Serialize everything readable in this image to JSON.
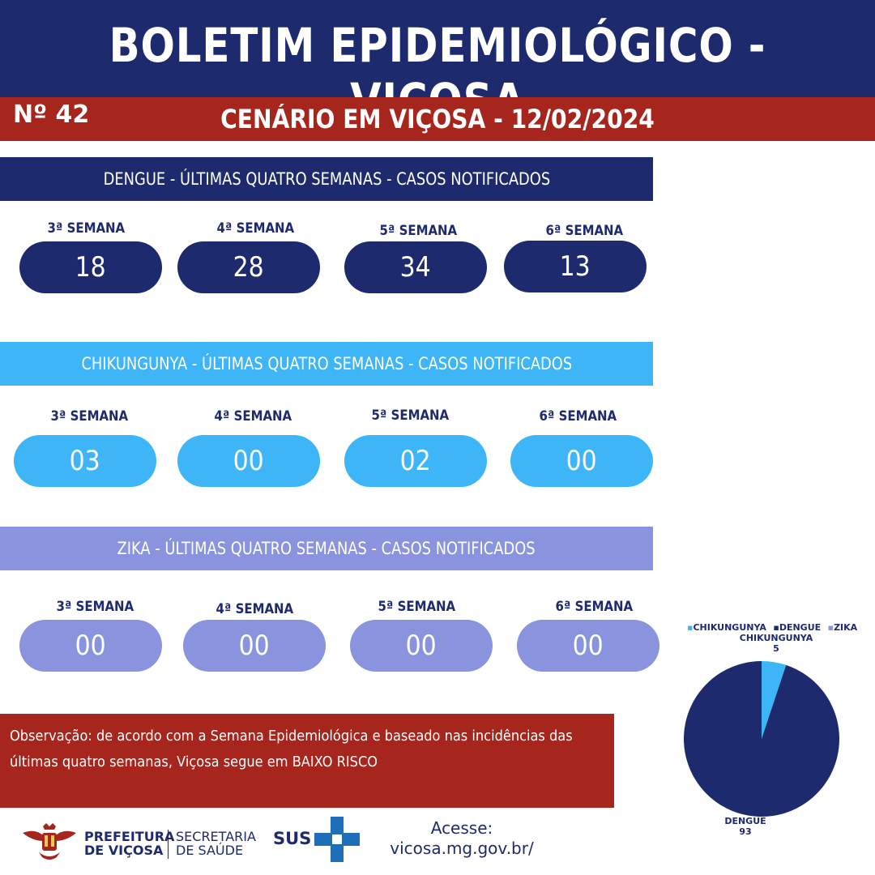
{
  "header": {
    "title": "BOLETIM EPIDEMIOLÓGICO - VIÇOSA",
    "issue": "Nº 42",
    "scenario": "CENÁRIO EM VIÇOSA - 12/02/2024"
  },
  "dengue": {
    "banner": "DENGUE - ÚLTIMAS QUATRO SEMANAS - CASOS NOTIFICADOS",
    "weeks": [
      {
        "label": "3ª SEMANA",
        "value": "18"
      },
      {
        "label": "4ª SEMANA",
        "value": "28"
      },
      {
        "label": "5ª SEMANA",
        "value": "34"
      },
      {
        "label": "6ª SEMANA",
        "value": "13"
      }
    ]
  },
  "chikungunya": {
    "banner": "CHIKUNGUNYA - ÚLTIMAS QUATRO SEMANAS - CASOS NOTIFICADOS",
    "weeks": [
      {
        "label": "3ª SEMANA",
        "value": "03"
      },
      {
        "label": "4ª SEMANA",
        "value": "00"
      },
      {
        "label": "5ª SEMANA",
        "value": "02"
      },
      {
        "label": "6ª SEMANA",
        "value": "00"
      }
    ]
  },
  "zika": {
    "banner": "ZIKA - ÚLTIMAS QUATRO SEMANAS - CASOS NOTIFICADOS",
    "weeks": [
      {
        "label": "3ª SEMANA",
        "value": "00"
      },
      {
        "label": "4ª SEMANA",
        "value": "00"
      },
      {
        "label": "5ª SEMANA",
        "value": "00"
      },
      {
        "label": "6ª SEMANA",
        "value": "00"
      }
    ]
  },
  "observation": "Observação: de acordo com a Semana Epidemiológica e baseado nas incidências das últimas quatro semanas, Viçosa segue em BAIXO RISCO",
  "footer": {
    "prefeitura_line1": "PREFEITURA",
    "prefeitura_line2": "DE VIÇOSA",
    "secretaria_line1": "SECRETARIA",
    "secretaria_line2": "DE SAÚDE",
    "sus": "SUS",
    "acesse": "Acesse:",
    "url": "vicosa.mg.gov.br/"
  },
  "colors": {
    "navy": "#1e2a6e",
    "red": "#a6251c",
    "light_blue": "#3db5f7",
    "lavender": "#8a93de"
  },
  "chart_data": {
    "type": "pie",
    "legend": [
      "CHIKUNGUNYA",
      "DENGUE",
      "ZIKA"
    ],
    "legend_position": "top",
    "slices": [
      {
        "name": "CHIKUNGUNYA",
        "value": 5,
        "color": "#3db5f7"
      },
      {
        "name": "DENGUE",
        "value": 93,
        "color": "#1e2a6e"
      },
      {
        "name": "ZIKA",
        "value": 0,
        "color": "#8a93de"
      }
    ],
    "labels": [
      {
        "name": "CHIKUNGUNYA",
        "value": "5"
      },
      {
        "name": "DENGUE",
        "value": "93"
      }
    ]
  }
}
